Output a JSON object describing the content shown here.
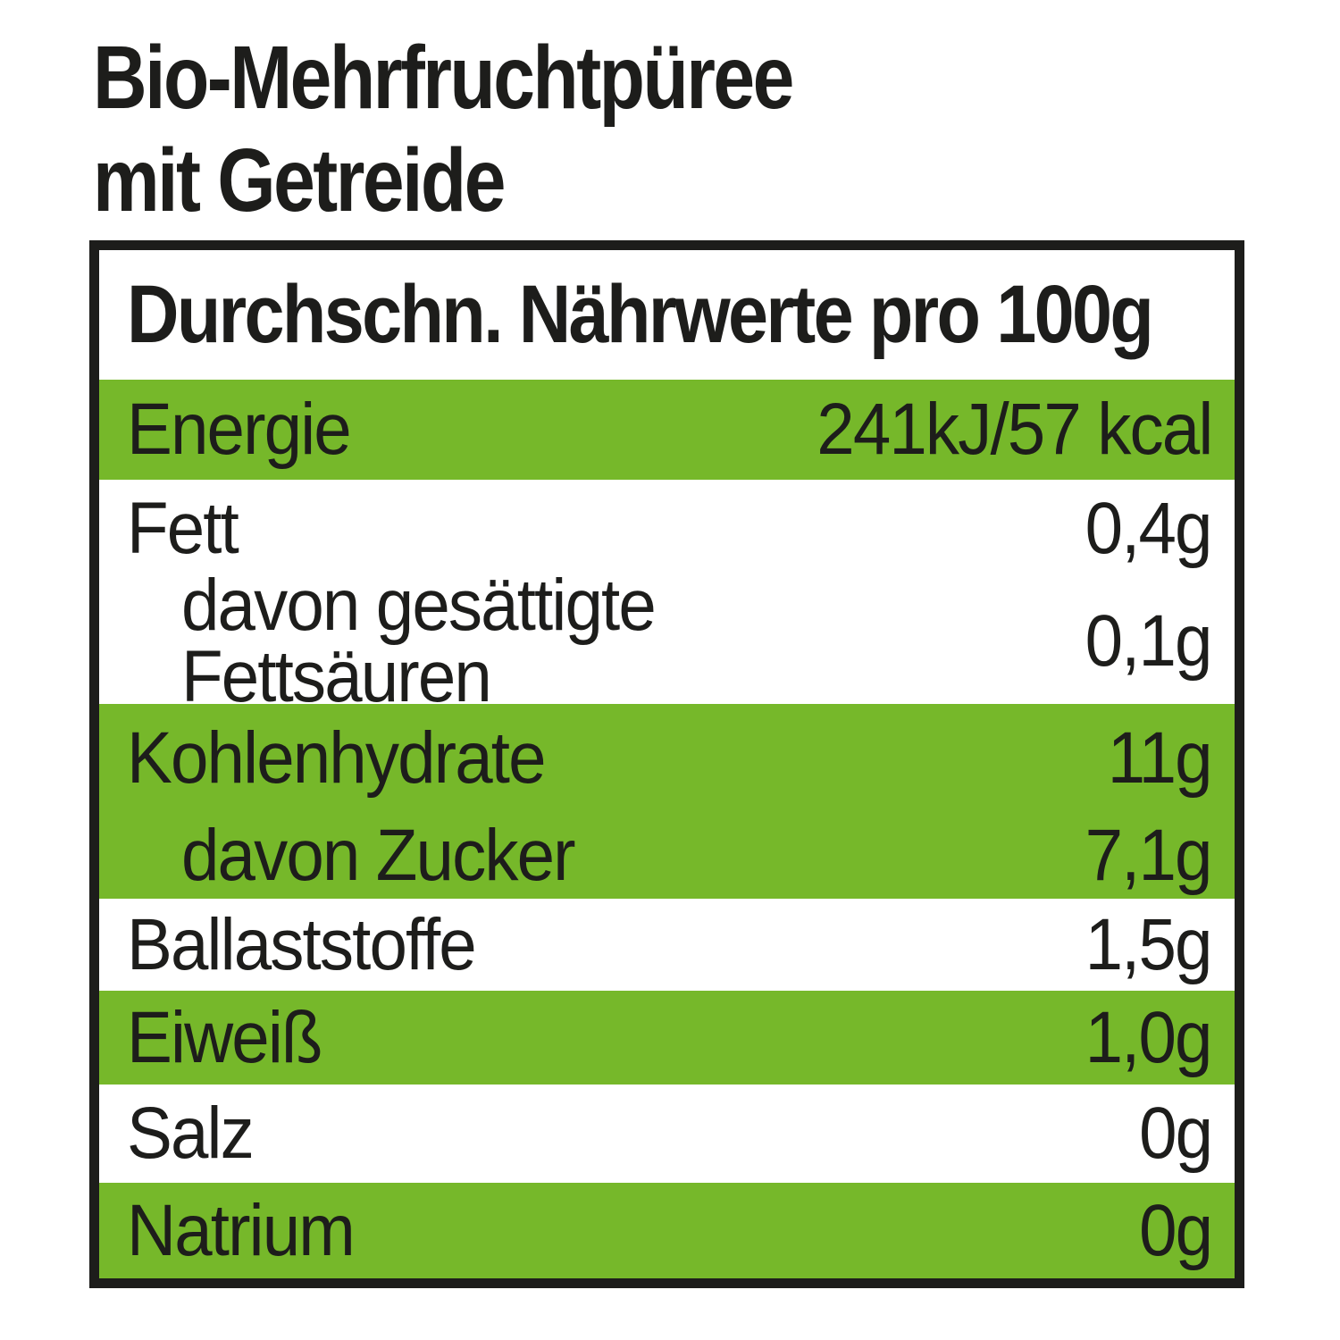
{
  "title": {
    "line1": "Bio-Mehrfruchtpüree",
    "line2": "mit Getreide"
  },
  "table": {
    "header": "Durchschn. Nährwerte pro 100g",
    "rows": [
      {
        "label": "Energie",
        "value": "241kJ/57 kcal",
        "green": true,
        "indent": false
      },
      {
        "label": "Fett",
        "value": "0,4g",
        "green": false,
        "indent": false
      },
      {
        "label": "davon gesättigte Fettsäuren",
        "value": "0,1g",
        "green": false,
        "indent": true
      },
      {
        "label": "Kohlenhydrate",
        "value": "11g",
        "green": true,
        "indent": false
      },
      {
        "label": "davon Zucker",
        "value": "7,1g",
        "green": true,
        "indent": true
      },
      {
        "label": "Ballaststoffe",
        "value": "1,5g",
        "green": false,
        "indent": false
      },
      {
        "label": "Eiweiß",
        "value": "1,0g",
        "green": true,
        "indent": false
      },
      {
        "label": "Salz",
        "value": "0g",
        "green": false,
        "indent": false
      },
      {
        "label": "Natrium",
        "value": "0g",
        "green": true,
        "indent": false
      }
    ],
    "colors": {
      "green": "#76b82a",
      "ink": "#1d1d1b",
      "background": "#ffffff"
    }
  }
}
